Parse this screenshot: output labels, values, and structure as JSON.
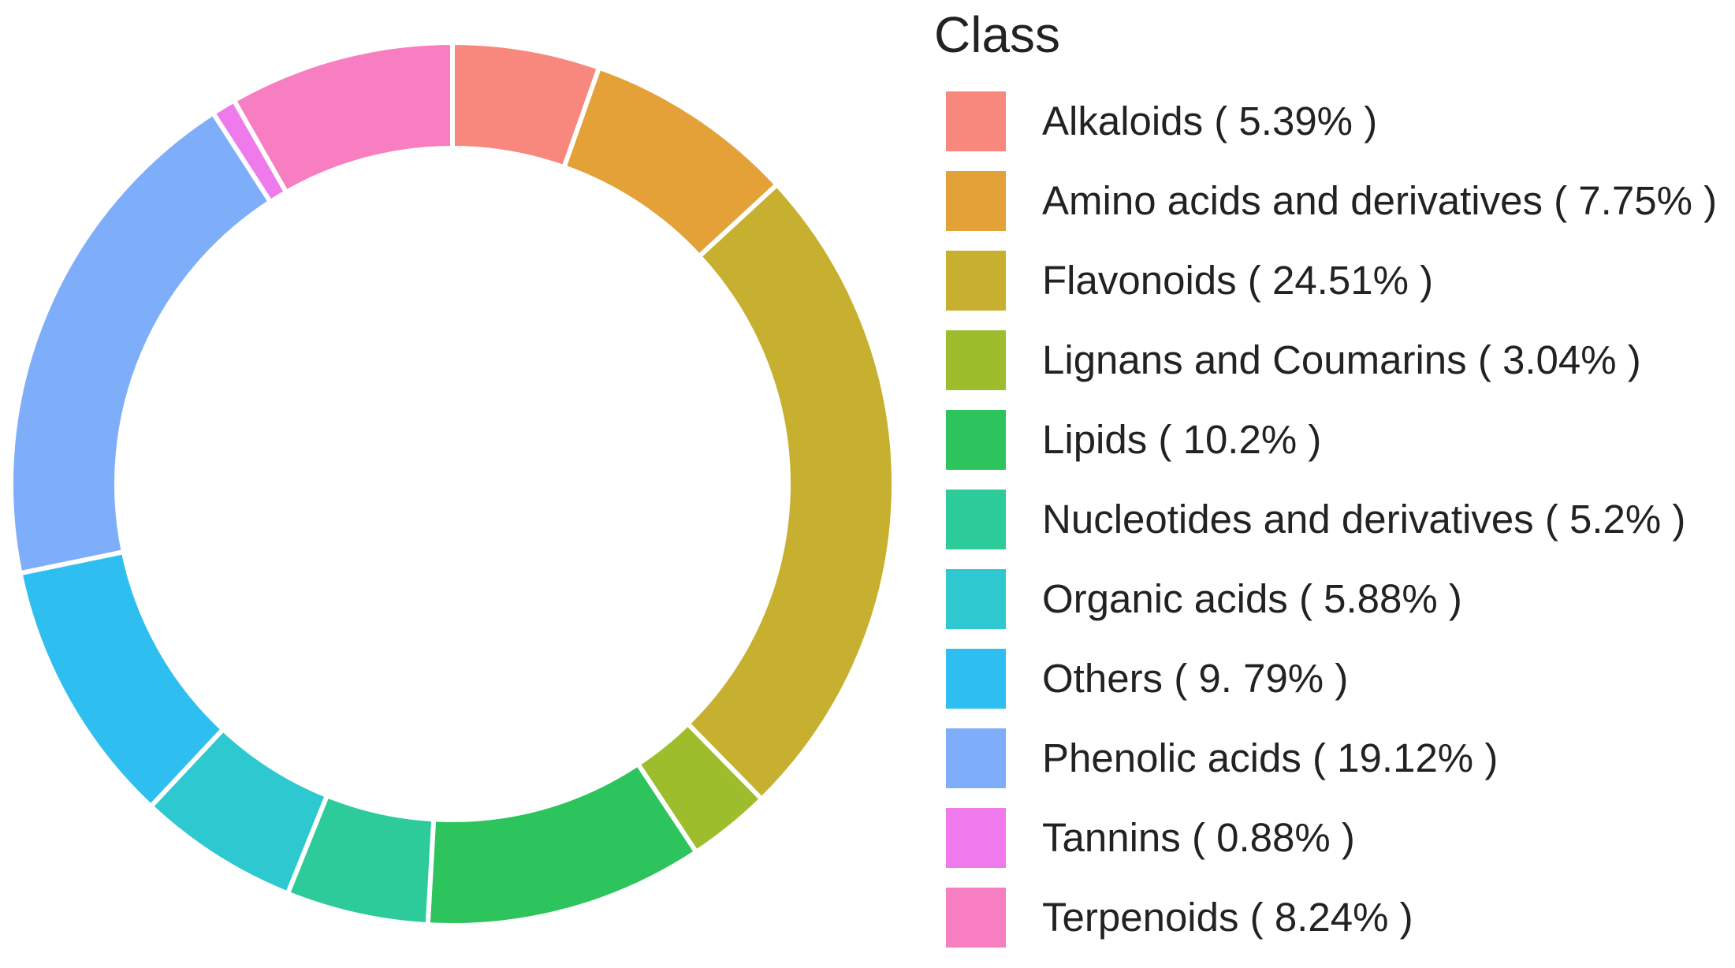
{
  "chart_data": {
    "type": "pie",
    "variant": "donut",
    "legend_title": "Class",
    "legend_position": "right",
    "slices": [
      {
        "name": "Alkaloids",
        "value": 5.39,
        "label": "Alkaloids ( 5.39% )",
        "color": "#F8887E"
      },
      {
        "name": "Amino acids and derivatives",
        "value": 7.75,
        "label": "Amino acids and derivatives ( 7.75% )",
        "color": "#E3A137"
      },
      {
        "name": "Flavonoids",
        "value": 24.51,
        "label": "Flavonoids ( 24.51% )",
        "color": "#C7B02F"
      },
      {
        "name": "Lignans and Coumarins",
        "value": 3.04,
        "label": "Lignans and Coumarins ( 3.04% )",
        "color": "#9EBD2D"
      },
      {
        "name": "Lipids",
        "value": 10.2,
        "label": "Lipids ( 10.2% )",
        "color": "#2DC45E"
      },
      {
        "name": "Nucleotides and derivatives",
        "value": 5.2,
        "label": "Nucleotides and derivatives ( 5.2% )",
        "color": "#2ECB9A"
      },
      {
        "name": "Organic acids",
        "value": 5.88,
        "label": "Organic acids ( 5.88% )",
        "color": "#2EC9D0"
      },
      {
        "name": "Others",
        "value": 9.79,
        "label": "Others ( 9. 79% )",
        "color": "#2EBFF0"
      },
      {
        "name": "Phenolic acids",
        "value": 19.12,
        "label": "Phenolic acids ( 19.12% )",
        "color": "#7EAEFA"
      },
      {
        "name": "Tannins",
        "value": 0.88,
        "label": "Tannins ( 0.88% )",
        "color": "#EF7AEC"
      },
      {
        "name": "Terpenoids",
        "value": 8.24,
        "label": "Terpenoids ( 8.24% )",
        "color": "#F77EC1"
      }
    ]
  }
}
